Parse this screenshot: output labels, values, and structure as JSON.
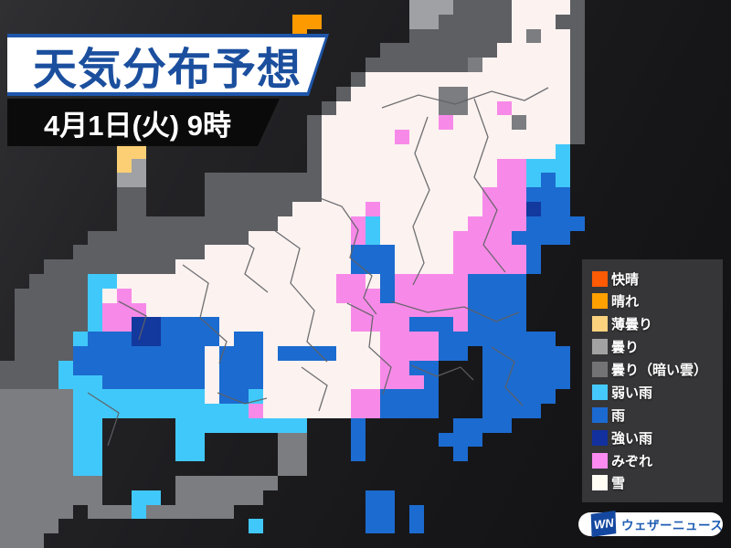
{
  "header": {
    "title": "天気分布予想",
    "datetime": "4月1日(火) 9時"
  },
  "legend": {
    "items": [
      {
        "label": "快晴",
        "color": "#ff5a04"
      },
      {
        "label": "晴れ",
        "color": "#ffa001"
      },
      {
        "label": "薄曇り",
        "color": "#fcd27e"
      },
      {
        "label": "曇り",
        "color": "#a2a2a3"
      },
      {
        "label": "曇り（暗い雲）",
        "color": "#737375"
      },
      {
        "label": "弱い雨",
        "color": "#45c8fc"
      },
      {
        "label": "雨",
        "color": "#1b6ad2"
      },
      {
        "label": "強い雨",
        "color": "#12309e"
      },
      {
        "label": "みぞれ",
        "color": "#fb8bf0"
      },
      {
        "label": "雪",
        "color": "#fffdf4"
      }
    ]
  },
  "branding": {
    "mark": "WN",
    "name": "ウェザーニュース"
  },
  "map": {
    "palette": {
      "D": "#5d5f63",
      "e": "#7b7d80",
      "g": "#9fa1a4",
      "s": "#fcf2f0",
      "m": "#f78ae8",
      "c": "#41c8fa",
      "r": "#1c6bd0",
      "R": "#13389e",
      "o": "#fd9a00",
      "t": "#fccf74"
    },
    "palette_meaning": {
      "D": "land-outside-forecast",
      "e": "cloudy-dark-clouds",
      "g": "cloudy",
      "s": "snow",
      "m": "sleet",
      "c": "weak-rain",
      "r": "rain",
      "R": "strong-rain",
      "o": "sunny",
      "t": "thin-clouds"
    },
    "rows": [
      "............................gggDDDDssssD..........",
      "....................oo......ggDDDDDsssDD..........",
      "....................o.......DDDDDDDsessD..........",
      "..........................DDDDDDDDsssssD..........",
      ".........................DDDDDDDessssssD..........",
      "........................DssssssssssssssD..........",
      ".......................DsssssseesssssssD..........",
      "......................DssssssseessmssssD..........",
      ".....................DssssssssmssssesssD..........",
      ".....................DsssssmsssssssssssD..........",
      "........tt...........Dssssssssssssssssc...........",
      "........tg...........Dssssssssssssmmccc...........",
      "........gg....DDDDDDDDssssssssssssmmcrc...........",
      "........DD....DDDDDDDDsssssssssssmmmrrr...........",
      "........DD....DDDDDDsssssmsssssssmmmRrr...........",
      "........DDDDDDDDDDDsssssmcssssssmmmmrrrr..........",
      "......DDDDDDDDDDDsssssssmcsssssmmmmrrrr...........",
      ".....DDDDDDDDDssssssssssrrrssssmmmmmr.............",
      "...DDDDDDDDDssssssssssssrrrssssmmmmmr.............",
      "..DDDDccsssssssssssssssmmsrmmmmmrrrr..............",
      ".DDDDDcsmssssssssssssssmmmrmmmmmrrrr..............",
      ".DDDDDcmmmssssssssssssssmmmmmmmmrrrr..............",
      ".DDDDDcmmRRrrrrsssssssssmmmmrrrmrrrr..............",
      ".DDDDcrrrRRrrrrsrrssssssssmmmmrrrrrrrr............",
      ".DDDDrrrrrrrrrsrrrsrrrrsssmmmmrr.rrrrrr...........",
      "DDDDcrrrrrrrrrsrrrssssssssmmrr...rrrrrr...........",
      "DDDDcccrrrrrrrsrrrssssssssmmmr...rrrrrr...........",
      "eeeeecccccccccsrrcssssssmmrrrr...rrrrr............",
      "eeeeeccccccccccccmssssssmmrrrr...rrrr.............",
      "eeeeecc.....ccccccccc...r......rrrr...............",
      "eeeeecc.....cc.....ee...r.....rrr.................",
      "eeeeecc.....cc.....ee...r......r..................",
      "eeeeecc............ee.............................",
      "eeeeeee.....eeeeeee...............................",
      "eeeeeee..cc.eeeeee.......rr.......................",
      "eeeee.eeeceeeeee.........rr.r.....................",
      "eeee.............c.......rr.r.....................",
      "eee..............................................."
    ],
    "pref_border_paths": [
      "M345,215 L374,226 L392,252 L383,282 L407,302 L398,326 L412,344",
      "M300,252 L328,272 L318,310 L344,340 L336,374 L358,396",
      "M380,332 L408,346 L404,380 L428,402 L419,432",
      "M468,128 L454,168 L470,208 L452,248 L464,288 L452,312",
      "M519,108 L534,150 L519,194 L544,230 L529,268 L553,298",
      "M418,118 L458,104 L498,114 L538,100 L574,110 L600,96",
      "M428,330 L468,342 L508,336 L543,352 L568,342",
      "M450,400 L478,412 L504,402 L518,416",
      "M200,290 L228,310 L219,348 L248,374 L240,398",
      "M250,252 L278,272 L268,300 L293,320",
      "M538,380 L563,396 L553,424 L572,444",
      "M330,402 L358,422 L349,450",
      "M238,430 L268,442 L292,436",
      "M130,330 L160,346 L152,372",
      "M96,430 L130,452 L118,488"
    ]
  }
}
